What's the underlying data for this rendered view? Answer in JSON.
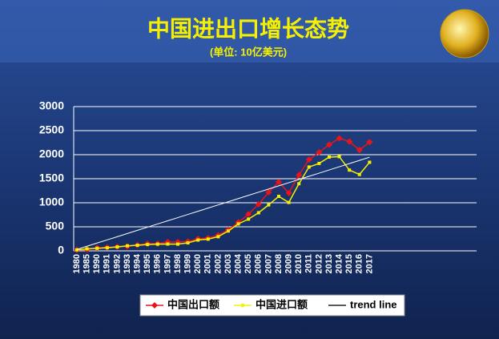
{
  "chart_data": {
    "type": "line",
    "title": "中国进出口增长态势",
    "subtitle": "(单位: 10亿美元)",
    "categories": [
      "1980",
      "1985",
      "1990",
      "1991",
      "1992",
      "1993",
      "1994",
      "1995",
      "1996",
      "1997",
      "1998",
      "1999",
      "2000",
      "2001",
      "2002",
      "2003",
      "2004",
      "2005",
      "2006",
      "2007",
      "2008",
      "2009",
      "2010",
      "2011",
      "2012",
      "2013",
      "2014",
      "2015",
      "2016",
      "2017"
    ],
    "series": [
      {
        "name": "中国出口额",
        "color": "#e8141c",
        "marker": "diamond",
        "values": [
          18,
          27,
          62,
          72,
          85,
          92,
          121,
          149,
          151,
          183,
          184,
          195,
          249,
          266,
          326,
          438,
          593,
          762,
          969,
          1218,
          1431,
          1202,
          1578,
          1898,
          2049,
          2209,
          2342,
          2273,
          2098,
          2263
        ]
      },
      {
        "name": "中国进口额",
        "color": "#f5f000",
        "marker": "square",
        "values": [
          20,
          42,
          53,
          64,
          81,
          104,
          116,
          132,
          139,
          142,
          140,
          166,
          225,
          244,
          295,
          413,
          561,
          660,
          792,
          956,
          1133,
          1006,
          1396,
          1743,
          1818,
          1950,
          1959,
          1680,
          1588,
          1842
        ]
      },
      {
        "name": "trend line",
        "color": "#ffffff",
        "marker": "none",
        "values": [
          30,
          96,
          162,
          228,
          294,
          360,
          427,
          493,
          559,
          625,
          691,
          757,
          823,
          889,
          955,
          1021,
          1088,
          1154,
          1220,
          1286,
          1352,
          1418,
          1484,
          1550,
          1616,
          1682,
          1749,
          1815,
          1881,
          1947
        ]
      }
    ],
    "ylim": [
      0,
      3000
    ],
    "yticks": [
      0,
      500,
      1000,
      1500,
      2000,
      2500,
      3000
    ],
    "grid": true
  }
}
